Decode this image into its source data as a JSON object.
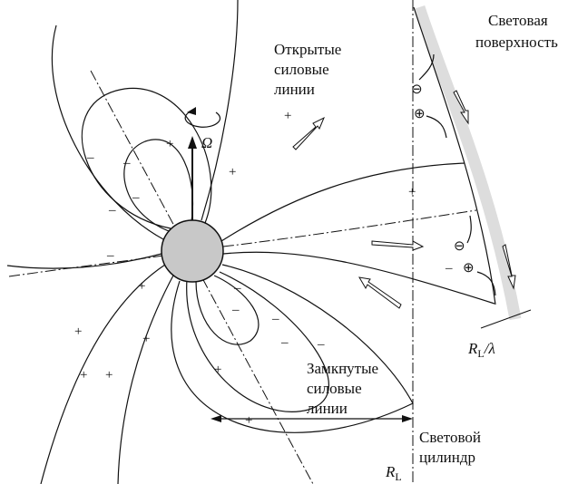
{
  "labels": {
    "light_surface": [
      "Световая",
      "поверхность"
    ],
    "open_lines": [
      "Открытые",
      "силовые",
      "линии"
    ],
    "omega": "Ω",
    "closed_lines": [
      "Замкнутые",
      "силовые",
      "линии"
    ],
    "light_cylinder": [
      "Световой",
      "цилиндр"
    ],
    "radius": {
      "symbol": "R",
      "subscript": "L"
    },
    "radius_lambda_suffix": "/λ"
  },
  "charges": {
    "plus": "+",
    "minus": "–",
    "plus_circled": "⊕",
    "minus_circled": "⊖"
  }
}
